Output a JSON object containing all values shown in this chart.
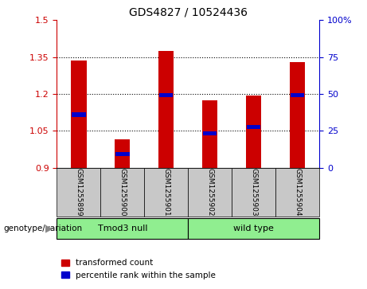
{
  "title": "GDS4827 / 10524436",
  "samples": [
    "GSM1255899",
    "GSM1255900",
    "GSM1255901",
    "GSM1255902",
    "GSM1255903",
    "GSM1255904"
  ],
  "red_bar_values": [
    1.335,
    1.015,
    1.375,
    1.175,
    1.195,
    1.33
  ],
  "blue_marker_values": [
    1.115,
    0.955,
    1.195,
    1.04,
    1.065,
    1.195
  ],
  "ylim": [
    0.9,
    1.5
  ],
  "yticks_left": [
    0.9,
    1.05,
    1.2,
    1.35,
    1.5
  ],
  "yticks_right": [
    0,
    25,
    50,
    75,
    100
  ],
  "ybase": 0.9,
  "right_ylim": [
    0,
    100
  ],
  "bar_color": "#CC0000",
  "blue_color": "#0000CC",
  "bg_color": "#C8C8C8",
  "green_color": "#90EE90",
  "bar_width": 0.35,
  "legend_red": "transformed count",
  "legend_blue": "percentile rank within the sample",
  "group1_label": "Tmod3 null",
  "group2_label": "wild type",
  "genotype_label": "genotype/variation"
}
